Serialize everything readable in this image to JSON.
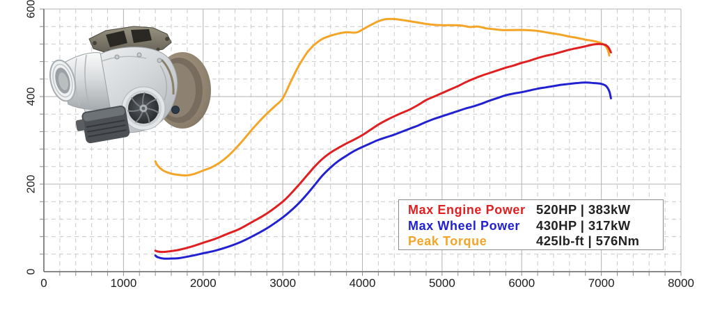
{
  "page": {
    "background": "#ffffff"
  },
  "chart_data": {
    "type": "line",
    "title": "",
    "xlabel": "",
    "ylabel": "",
    "xlim": [
      0,
      8000
    ],
    "ylim": [
      0,
      600
    ],
    "x_ticks": [
      0,
      1000,
      2000,
      3000,
      4000,
      5000,
      6000,
      7000,
      8000
    ],
    "x_tick_labels": [
      "0",
      "1000",
      "2000",
      "3000",
      "4000",
      "5000",
      "6000",
      "7000",
      "8000"
    ],
    "y_ticks": [
      0,
      200,
      400,
      600
    ],
    "y_tick_labels": [
      "0",
      "200",
      "400",
      "600"
    ],
    "x_minor_step": 200,
    "y_minor_step": 40,
    "grid": "major-solid-minor-dashed",
    "legend_position": "lower-right",
    "series": [
      {
        "name": "Peak Torque",
        "units": "Nm",
        "color": "#f4a427",
        "points": [
          [
            1400,
            252
          ],
          [
            1430,
            242
          ],
          [
            1500,
            231
          ],
          [
            1600,
            224
          ],
          [
            1700,
            221
          ],
          [
            1800,
            220
          ],
          [
            1900,
            224
          ],
          [
            2000,
            231
          ],
          [
            2100,
            238
          ],
          [
            2200,
            248
          ],
          [
            2300,
            262
          ],
          [
            2400,
            280
          ],
          [
            2500,
            300
          ],
          [
            2600,
            322
          ],
          [
            2700,
            342
          ],
          [
            2800,
            361
          ],
          [
            2900,
            378
          ],
          [
            3000,
            396
          ],
          [
            3100,
            434
          ],
          [
            3200,
            470
          ],
          [
            3300,
            499
          ],
          [
            3350,
            510
          ],
          [
            3400,
            519
          ],
          [
            3500,
            532
          ],
          [
            3600,
            539
          ],
          [
            3700,
            544
          ],
          [
            3800,
            547
          ],
          [
            3900,
            546
          ],
          [
            3950,
            548
          ],
          [
            4000,
            553
          ],
          [
            4100,
            563
          ],
          [
            4200,
            572
          ],
          [
            4300,
            577
          ],
          [
            4400,
            577
          ],
          [
            4500,
            575
          ],
          [
            4600,
            572
          ],
          [
            4700,
            569
          ],
          [
            4800,
            566
          ],
          [
            4900,
            564
          ],
          [
            5000,
            563
          ],
          [
            5150,
            563
          ],
          [
            5250,
            562
          ],
          [
            5350,
            559
          ],
          [
            5450,
            560
          ],
          [
            5550,
            556
          ],
          [
            5650,
            554
          ],
          [
            5750,
            552
          ],
          [
            5900,
            552
          ],
          [
            6050,
            552
          ],
          [
            6200,
            550
          ],
          [
            6300,
            547
          ],
          [
            6400,
            544
          ],
          [
            6500,
            541
          ],
          [
            6600,
            537
          ],
          [
            6700,
            534
          ],
          [
            6800,
            530
          ],
          [
            6900,
            527
          ],
          [
            7000,
            522
          ],
          [
            7050,
            516
          ],
          [
            7080,
            507
          ],
          [
            7100,
            494
          ]
        ]
      },
      {
        "name": "Max Wheel Power",
        "units": "HP",
        "color": "#2121d1",
        "points": [
          [
            1400,
            37
          ],
          [
            1430,
            33
          ],
          [
            1500,
            30
          ],
          [
            1600,
            30
          ],
          [
            1700,
            31
          ],
          [
            1850,
            36
          ],
          [
            2000,
            42
          ],
          [
            2150,
            48
          ],
          [
            2300,
            56
          ],
          [
            2450,
            66
          ],
          [
            2600,
            79
          ],
          [
            2800,
            99
          ],
          [
            3000,
            124
          ],
          [
            3100,
            139
          ],
          [
            3200,
            156
          ],
          [
            3300,
            176
          ],
          [
            3400,
            198
          ],
          [
            3500,
            220
          ],
          [
            3600,
            238
          ],
          [
            3700,
            253
          ],
          [
            3800,
            265
          ],
          [
            3900,
            276
          ],
          [
            4000,
            285
          ],
          [
            4100,
            293
          ],
          [
            4200,
            301
          ],
          [
            4300,
            307
          ],
          [
            4400,
            313
          ],
          [
            4500,
            320
          ],
          [
            4600,
            327
          ],
          [
            4700,
            334
          ],
          [
            4800,
            342
          ],
          [
            4900,
            349
          ],
          [
            5000,
            355
          ],
          [
            5100,
            361
          ],
          [
            5200,
            367
          ],
          [
            5300,
            373
          ],
          [
            5400,
            378
          ],
          [
            5500,
            384
          ],
          [
            5600,
            391
          ],
          [
            5700,
            397
          ],
          [
            5800,
            403
          ],
          [
            5900,
            407
          ],
          [
            6000,
            410
          ],
          [
            6100,
            414
          ],
          [
            6200,
            418
          ],
          [
            6300,
            421
          ],
          [
            6400,
            424
          ],
          [
            6500,
            427
          ],
          [
            6600,
            429
          ],
          [
            6700,
            431
          ],
          [
            6800,
            432
          ],
          [
            6900,
            431
          ],
          [
            7000,
            429
          ],
          [
            7060,
            424
          ],
          [
            7100,
            412
          ],
          [
            7120,
            396
          ]
        ]
      },
      {
        "name": "Max Engine Power",
        "units": "HP",
        "color": "#e01f21",
        "points": [
          [
            1400,
            48
          ],
          [
            1430,
            46
          ],
          [
            1480,
            45
          ],
          [
            1560,
            46
          ],
          [
            1700,
            50
          ],
          [
            1850,
            57
          ],
          [
            2000,
            66
          ],
          [
            2150,
            75
          ],
          [
            2300,
            86
          ],
          [
            2450,
            97
          ],
          [
            2600,
            112
          ],
          [
            2800,
            133
          ],
          [
            3000,
            160
          ],
          [
            3100,
            178
          ],
          [
            3200,
            198
          ],
          [
            3300,
            219
          ],
          [
            3400,
            240
          ],
          [
            3500,
            258
          ],
          [
            3600,
            272
          ],
          [
            3700,
            283
          ],
          [
            3800,
            293
          ],
          [
            3900,
            302
          ],
          [
            4000,
            312
          ],
          [
            4100,
            324
          ],
          [
            4200,
            336
          ],
          [
            4300,
            346
          ],
          [
            4400,
            355
          ],
          [
            4500,
            363
          ],
          [
            4600,
            371
          ],
          [
            4700,
            381
          ],
          [
            4800,
            392
          ],
          [
            4900,
            400
          ],
          [
            5000,
            408
          ],
          [
            5100,
            416
          ],
          [
            5200,
            424
          ],
          [
            5300,
            433
          ],
          [
            5400,
            441
          ],
          [
            5500,
            448
          ],
          [
            5600,
            454
          ],
          [
            5700,
            460
          ],
          [
            5800,
            466
          ],
          [
            5900,
            471
          ],
          [
            6000,
            477
          ],
          [
            6100,
            482
          ],
          [
            6200,
            488
          ],
          [
            6300,
            493
          ],
          [
            6400,
            497
          ],
          [
            6500,
            502
          ],
          [
            6600,
            507
          ],
          [
            6700,
            511
          ],
          [
            6800,
            515
          ],
          [
            6900,
            519
          ],
          [
            6980,
            520
          ],
          [
            7050,
            518
          ],
          [
            7090,
            512
          ],
          [
            7120,
            501
          ]
        ]
      }
    ]
  },
  "legend": {
    "rows": [
      {
        "label": "Max Engine Power",
        "value": "520HP | 383kW",
        "color": "#e01f21"
      },
      {
        "label": "Max Wheel Power",
        "value": "430HP | 317kW",
        "color": "#2121d1"
      },
      {
        "label": "Peak Torque",
        "value": "425lb-ft | 576Nm",
        "color": "#f4a427"
      }
    ]
  },
  "turbo_image": {
    "alt": "turbocharger product photo"
  }
}
